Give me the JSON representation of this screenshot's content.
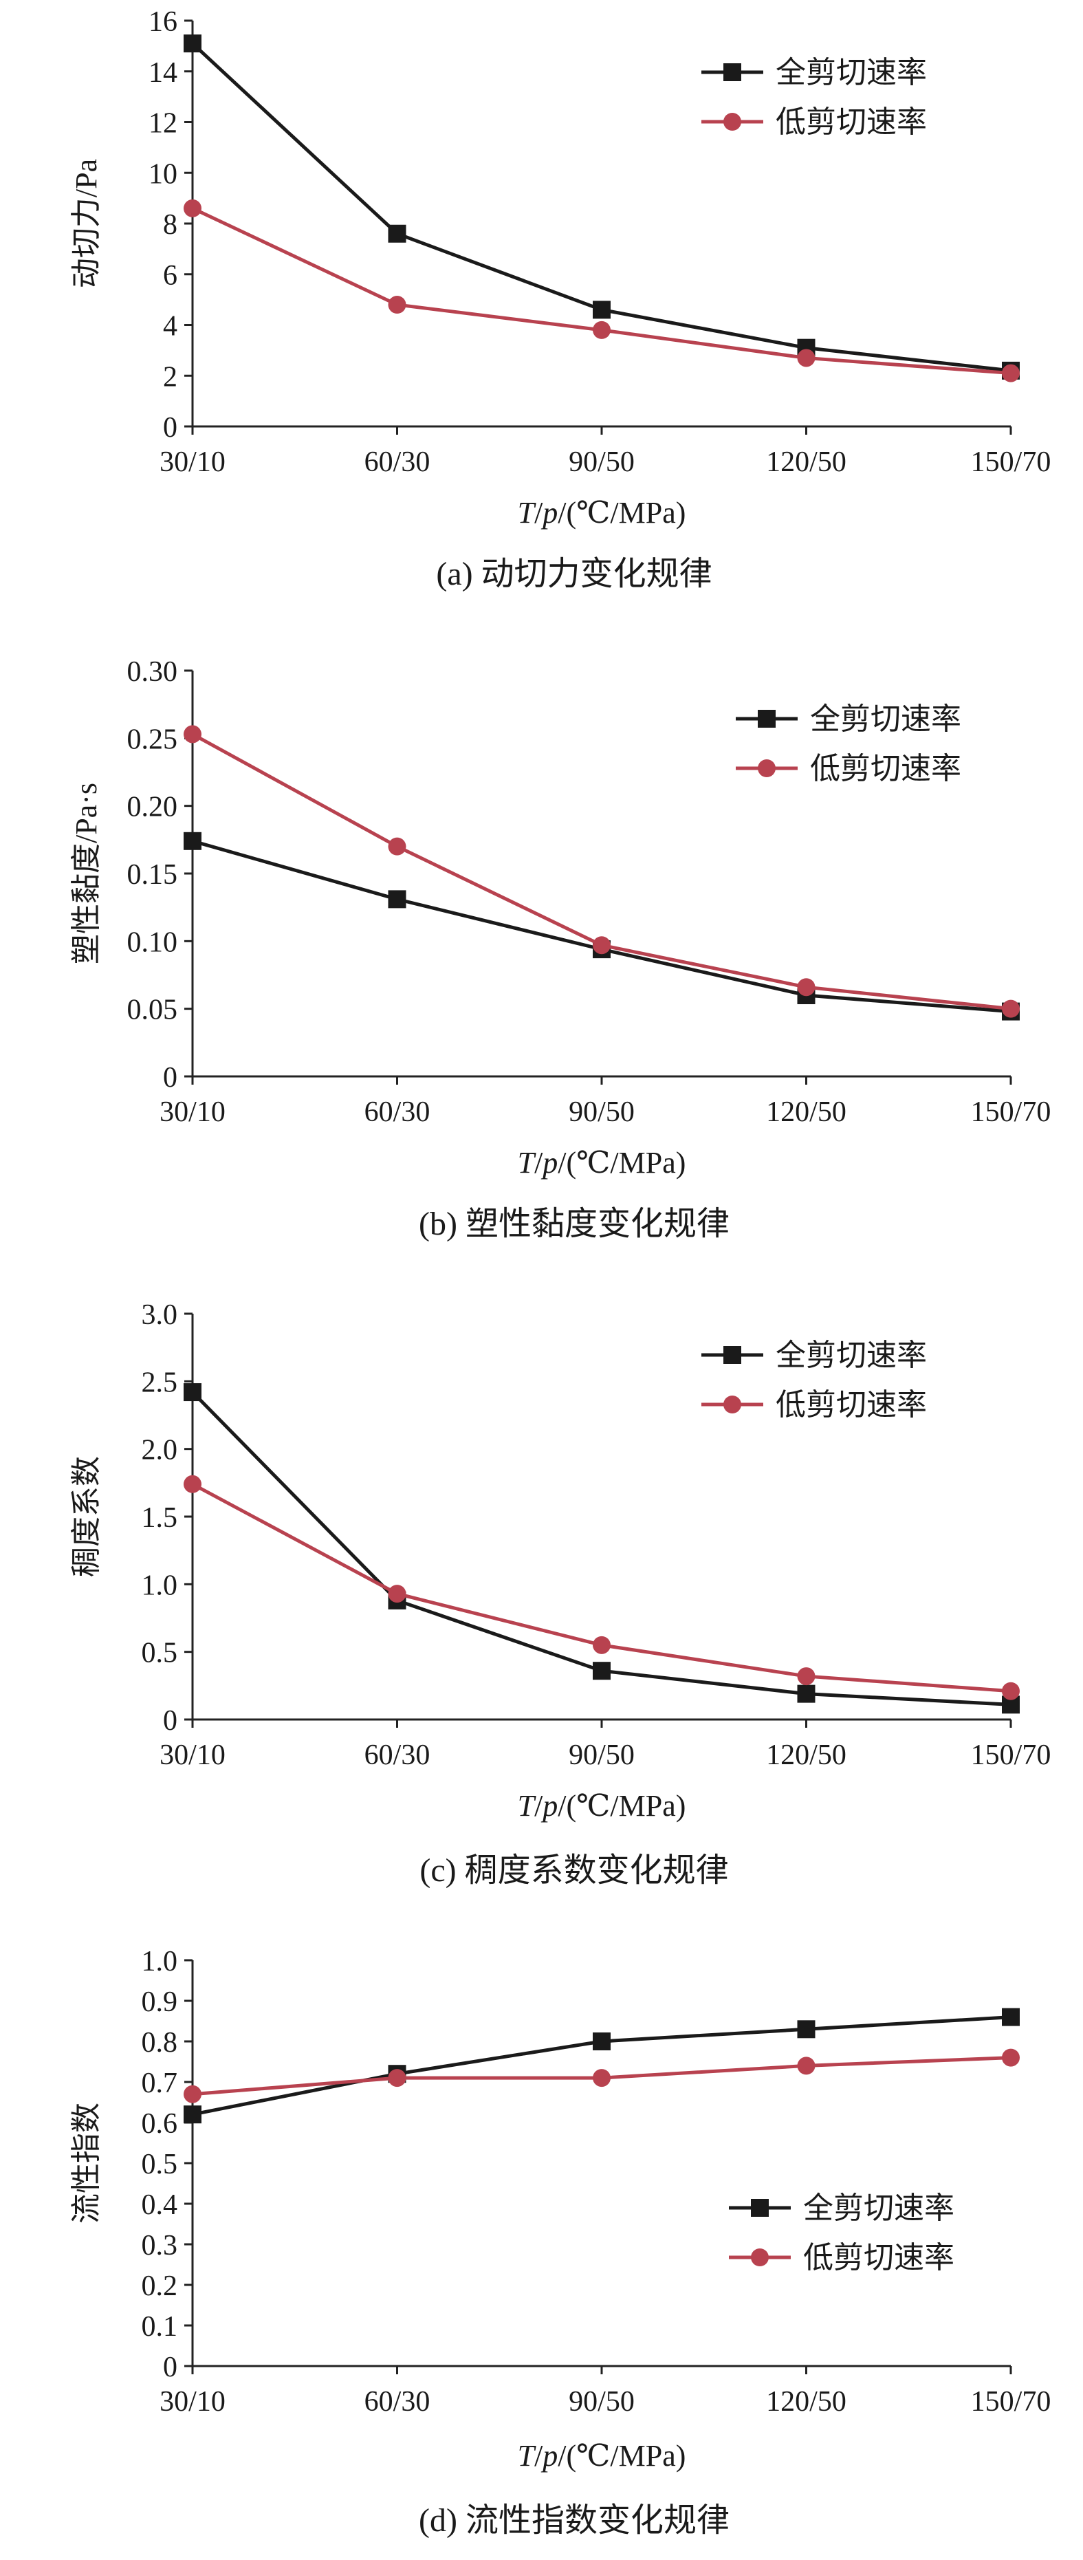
{
  "chart_data": [
    {
      "type": "line",
      "caption": "(a) 动切力变化规律",
      "categories": [
        "30/10",
        "60/30",
        "90/50",
        "120/50",
        "150/70"
      ],
      "xlabel": "T/p/(℃/MPa)",
      "ylabel": "动切力/Pa",
      "ylim": [
        0,
        16
      ],
      "yticks": [
        0,
        2,
        4,
        6,
        8,
        10,
        12,
        14,
        16
      ],
      "ytick_labels": [
        "0",
        "2",
        "4",
        "6",
        "8",
        "10",
        "12",
        "14",
        "16"
      ],
      "legend_position": "top-right",
      "series": [
        {
          "name": "全剪切速率",
          "color": "#1a1a1a",
          "marker": "square",
          "values": [
            15.1,
            7.6,
            4.6,
            3.1,
            2.2
          ]
        },
        {
          "name": "低剪切速率",
          "color": "#b8424f",
          "marker": "circle",
          "values": [
            8.6,
            4.8,
            3.8,
            2.7,
            2.1
          ]
        }
      ]
    },
    {
      "type": "line",
      "caption": "(b) 塑性黏度变化规律",
      "categories": [
        "30/10",
        "60/30",
        "90/50",
        "120/50",
        "150/70"
      ],
      "xlabel": "T/p/(℃/MPa)",
      "ylabel": "塑性黏度/Pa·s",
      "ylim": [
        0,
        0.3
      ],
      "yticks": [
        0,
        0.05,
        0.1,
        0.15,
        0.2,
        0.25,
        0.3
      ],
      "ytick_labels": [
        "0",
        "0.05",
        "0.10",
        "0.15",
        "0.20",
        "0.25",
        "0.30"
      ],
      "legend_position": "top-right",
      "series": [
        {
          "name": "全剪切速率",
          "color": "#1a1a1a",
          "marker": "square",
          "values": [
            0.174,
            0.131,
            0.094,
            0.06,
            0.048
          ]
        },
        {
          "name": "低剪切速率",
          "color": "#b8424f",
          "marker": "circle",
          "values": [
            0.253,
            0.17,
            0.097,
            0.066,
            0.05
          ]
        }
      ]
    },
    {
      "type": "line",
      "caption": "(c) 稠度系数变化规律",
      "categories": [
        "30/10",
        "60/30",
        "90/50",
        "120/50",
        "150/70"
      ],
      "xlabel": "T/p/(℃/MPa)",
      "ylabel": "稠度系数",
      "ylim": [
        0,
        3
      ],
      "yticks": [
        0,
        0.5,
        1,
        1.5,
        2,
        2.5,
        3
      ],
      "ytick_labels": [
        "0",
        "0.5",
        "1.0",
        "1.5",
        "2.0",
        "2.5",
        "3.0"
      ],
      "legend_position": "top-right",
      "series": [
        {
          "name": "全剪切速率",
          "color": "#1a1a1a",
          "marker": "square",
          "values": [
            2.42,
            0.88,
            0.36,
            0.19,
            0.11
          ]
        },
        {
          "name": "低剪切速率",
          "color": "#b8424f",
          "marker": "circle",
          "values": [
            1.74,
            0.93,
            0.55,
            0.32,
            0.21
          ]
        }
      ]
    },
    {
      "type": "line",
      "caption": "(d) 流性指数变化规律",
      "categories": [
        "30/10",
        "60/30",
        "90/50",
        "120/50",
        "150/70"
      ],
      "xlabel": "T/p/(℃/MPa)",
      "ylabel": "流性指数",
      "ylim": [
        0,
        1
      ],
      "yticks": [
        0,
        0.1,
        0.2,
        0.3,
        0.4,
        0.5,
        0.6,
        0.7,
        0.8,
        0.9,
        1
      ],
      "ytick_labels": [
        "0",
        "0.1",
        "0.2",
        "0.3",
        "0.4",
        "0.5",
        "0.6",
        "0.7",
        "0.8",
        "0.9",
        "1.0"
      ],
      "legend_position": "right",
      "series": [
        {
          "name": "全剪切速率",
          "color": "#1a1a1a",
          "marker": "square",
          "values": [
            0.62,
            0.72,
            0.8,
            0.83,
            0.86
          ]
        },
        {
          "name": "低剪切速率",
          "color": "#b8424f",
          "marker": "circle",
          "values": [
            0.67,
            0.71,
            0.71,
            0.74,
            0.76
          ]
        }
      ]
    }
  ]
}
